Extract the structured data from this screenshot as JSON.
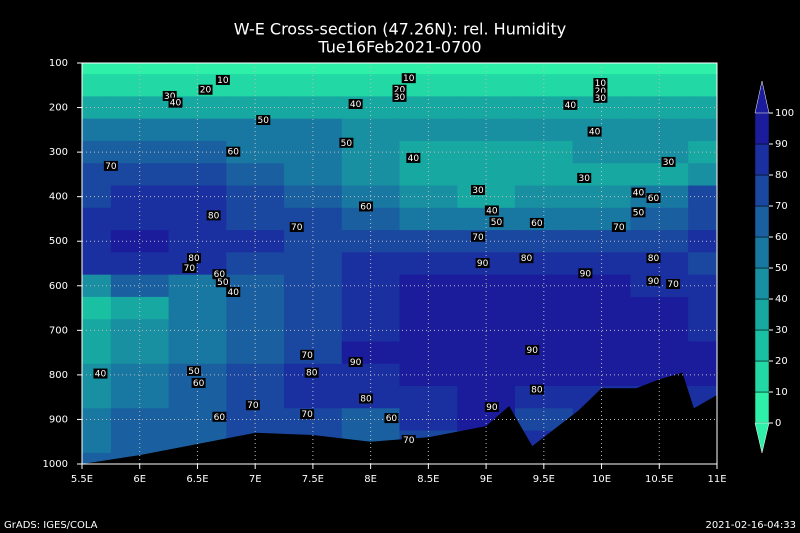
{
  "chart_data": {
    "type": "contour",
    "title": "W-E Cross-section (47.26N): rel. Humidity",
    "subtitle": "Tue16Feb2021-0700",
    "x": [
      5.5,
      6,
      6.5,
      7,
      7.5,
      8,
      8.5,
      9,
      9.5,
      10,
      10.5,
      11
    ],
    "y": [
      100,
      150,
      200,
      250,
      300,
      350,
      400,
      450,
      500,
      550,
      600,
      650,
      700,
      750,
      800,
      850,
      900,
      950,
      1000
    ],
    "z": [
      [
        5,
        5,
        5,
        5,
        5,
        5,
        5,
        5,
        5,
        5,
        5,
        5
      ],
      [
        15,
        15,
        15,
        15,
        15,
        15,
        15,
        15,
        15,
        15,
        15,
        15
      ],
      [
        35,
        35,
        35,
        35,
        35,
        35,
        35,
        35,
        35,
        35,
        35,
        35
      ],
      [
        55,
        55,
        55,
        52,
        50,
        48,
        45,
        45,
        45,
        45,
        45,
        45
      ],
      [
        65,
        65,
        60,
        55,
        50,
        45,
        35,
        35,
        35,
        40,
        40,
        35
      ],
      [
        70,
        75,
        70,
        60,
        55,
        45,
        30,
        30,
        35,
        30,
        35,
        40
      ],
      [
        75,
        80,
        80,
        70,
        65,
        55,
        40,
        35,
        40,
        40,
        55,
        70
      ],
      [
        80,
        85,
        85,
        75,
        70,
        65,
        55,
        50,
        55,
        55,
        65,
        75
      ],
      [
        85,
        90,
        85,
        80,
        70,
        75,
        75,
        75,
        70,
        70,
        75,
        80
      ],
      [
        80,
        85,
        80,
        75,
        75,
        80,
        85,
        85,
        85,
        80,
        80,
        75
      ],
      [
        45,
        60,
        55,
        60,
        70,
        80,
        90,
        95,
        90,
        90,
        85,
        80
      ],
      [
        25,
        35,
        50,
        60,
        70,
        80,
        90,
        95,
        95,
        95,
        90,
        85
      ],
      [
        30,
        40,
        50,
        60,
        70,
        85,
        95,
        95,
        95,
        95,
        90,
        85
      ],
      [
        35,
        45,
        55,
        65,
        75,
        90,
        95,
        95,
        90,
        95,
        90,
        90
      ],
      [
        40,
        50,
        60,
        70,
        80,
        85,
        90,
        95,
        95,
        90,
        90,
        90
      ],
      [
        45,
        55,
        65,
        75,
        80,
        80,
        85,
        90,
        80,
        85,
        80,
        80
      ],
      [
        50,
        60,
        65,
        70,
        70,
        60,
        80,
        90,
        75,
        85,
        85,
        85
      ],
      [
        55,
        60,
        65,
        70,
        70,
        65,
        75,
        85,
        80,
        85,
        85,
        85
      ],
      [
        60,
        65,
        70,
        70,
        70,
        70,
        75,
        85,
        80,
        85,
        85,
        85
      ]
    ],
    "levels": [
      0,
      10,
      20,
      30,
      40,
      50,
      60,
      70,
      80,
      90,
      100
    ],
    "colors": [
      "#2ef0a8",
      "#22d8a4",
      "#1ac0a2",
      "#17a8a2",
      "#1890a2",
      "#1878a2",
      "#1a60a0",
      "#1a48a0",
      "#1a30a0",
      "#1a1c9c"
    ],
    "terrain": {
      "x": [
        5.5,
        6,
        6.5,
        7,
        7.5,
        8,
        8.5,
        9,
        9.2,
        9.4,
        9.5,
        9.8,
        10,
        10.3,
        10.5,
        10.7,
        10.8,
        11
      ],
      "y": [
        1000,
        980,
        955,
        930,
        935,
        950,
        940,
        915,
        870,
        960,
        940,
        880,
        830,
        830,
        810,
        795,
        875,
        845
      ]
    },
    "contour_labels": [
      {
        "value": 10,
        "x": 6.72,
        "y": 138
      },
      {
        "value": 20,
        "x": 6.57,
        "y": 160
      },
      {
        "value": 30,
        "x": 6.26,
        "y": 174
      },
      {
        "value": 40,
        "x": 6.31,
        "y": 189
      },
      {
        "value": 10,
        "x": 8.33,
        "y": 134
      },
      {
        "value": 20,
        "x": 8.25,
        "y": 160
      },
      {
        "value": 30,
        "x": 8.25,
        "y": 176
      },
      {
        "value": 10,
        "x": 9.99,
        "y": 145
      },
      {
        "value": 20,
        "x": 9.99,
        "y": 163
      },
      {
        "value": 30,
        "x": 9.99,
        "y": 178
      },
      {
        "value": 40,
        "x": 7.87,
        "y": 192
      },
      {
        "value": 40,
        "x": 9.73,
        "y": 194
      },
      {
        "value": 50,
        "x": 7.07,
        "y": 228
      },
      {
        "value": 40,
        "x": 9.94,
        "y": 254
      },
      {
        "value": 50,
        "x": 7.79,
        "y": 279
      },
      {
        "value": 60,
        "x": 6.81,
        "y": 299
      },
      {
        "value": 40,
        "x": 8.37,
        "y": 313
      },
      {
        "value": 70,
        "x": 5.75,
        "y": 331
      },
      {
        "value": 30,
        "x": 10.58,
        "y": 322
      },
      {
        "value": 30,
        "x": 9.85,
        "y": 358
      },
      {
        "value": 30,
        "x": 8.93,
        "y": 385
      },
      {
        "value": 60,
        "x": 7.96,
        "y": 422
      },
      {
        "value": 40,
        "x": 10.32,
        "y": 391
      },
      {
        "value": 60,
        "x": 10.45,
        "y": 403
      },
      {
        "value": 40,
        "x": 9.05,
        "y": 431
      },
      {
        "value": 50,
        "x": 10.32,
        "y": 435
      },
      {
        "value": 80,
        "x": 6.64,
        "y": 442
      },
      {
        "value": 50,
        "x": 9.09,
        "y": 457
      },
      {
        "value": 60,
        "x": 9.44,
        "y": 459
      },
      {
        "value": 70,
        "x": 7.36,
        "y": 468
      },
      {
        "value": 70,
        "x": 10.15,
        "y": 468
      },
      {
        "value": 70,
        "x": 8.93,
        "y": 490
      },
      {
        "value": 90,
        "x": 8.97,
        "y": 549
      },
      {
        "value": 80,
        "x": 9.35,
        "y": 538
      },
      {
        "value": 90,
        "x": 9.86,
        "y": 572
      },
      {
        "value": 80,
        "x": 10.45,
        "y": 538
      },
      {
        "value": 90,
        "x": 10.45,
        "y": 589
      },
      {
        "value": 70,
        "x": 10.62,
        "y": 596
      },
      {
        "value": 80,
        "x": 6.47,
        "y": 538
      },
      {
        "value": 70,
        "x": 6.43,
        "y": 560
      },
      {
        "value": 60,
        "x": 6.69,
        "y": 574
      },
      {
        "value": 50,
        "x": 6.72,
        "y": 592
      },
      {
        "value": 40,
        "x": 6.81,
        "y": 614
      },
      {
        "value": 70,
        "x": 7.45,
        "y": 755
      },
      {
        "value": 90,
        "x": 7.87,
        "y": 771
      },
      {
        "value": 90,
        "x": 9.4,
        "y": 744
      },
      {
        "value": 80,
        "x": 7.49,
        "y": 795
      },
      {
        "value": 50,
        "x": 6.47,
        "y": 791
      },
      {
        "value": 40,
        "x": 5.66,
        "y": 797
      },
      {
        "value": 60,
        "x": 6.51,
        "y": 818
      },
      {
        "value": 80,
        "x": 7.96,
        "y": 853
      },
      {
        "value": 80,
        "x": 9.44,
        "y": 833
      },
      {
        "value": 70,
        "x": 6.98,
        "y": 868
      },
      {
        "value": 90,
        "x": 9.05,
        "y": 872
      },
      {
        "value": 70,
        "x": 7.45,
        "y": 888
      },
      {
        "value": 60,
        "x": 6.69,
        "y": 894
      },
      {
        "value": 60,
        "x": 8.18,
        "y": 897
      },
      {
        "value": 70,
        "x": 8.33,
        "y": 946
      }
    ],
    "xlim": [
      5.5,
      11
    ],
    "ylim": [
      1000,
      100
    ],
    "xticks": [
      {
        "value": 5.5,
        "label": "5.5E"
      },
      {
        "value": 6,
        "label": "6E"
      },
      {
        "value": 6.5,
        "label": "6.5E"
      },
      {
        "value": 7,
        "label": "7E"
      },
      {
        "value": 7.5,
        "label": "7.5E"
      },
      {
        "value": 8,
        "label": "8E"
      },
      {
        "value": 8.5,
        "label": "8.5E"
      },
      {
        "value": 9,
        "label": "9E"
      },
      {
        "value": 9.5,
        "label": "9.5E"
      },
      {
        "value": 10,
        "label": "10E"
      },
      {
        "value": 10.5,
        "label": "10.5E"
      },
      {
        "value": 11,
        "label": "11E"
      }
    ],
    "yticks": [
      100,
      200,
      300,
      400,
      500,
      600,
      700,
      800,
      900,
      1000
    ],
    "colorbar_ticks": [
      0,
      10,
      20,
      30,
      40,
      50,
      60,
      70,
      80,
      90,
      100
    ],
    "grid": true,
    "footer_left": "GrADS: IGES/COLA",
    "footer_right": "2021-02-16-04:33"
  }
}
